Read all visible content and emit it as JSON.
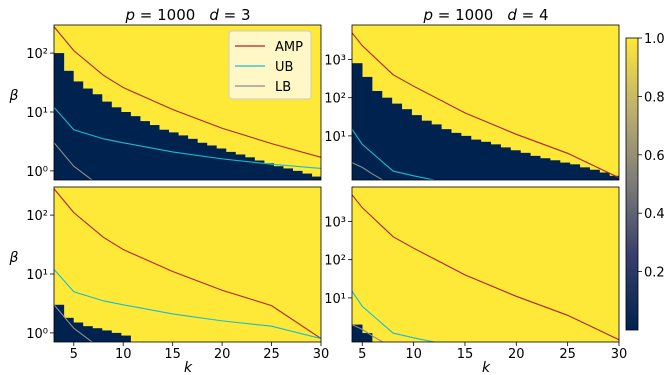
{
  "figure": {
    "colorbar": {
      "ticks": [
        "0.2",
        "0.4",
        "0.6",
        "0.8",
        "1.0"
      ],
      "low_color": "#00224e",
      "high_color": "#fee838"
    },
    "legend": {
      "position": "top-right",
      "panel": 0
    }
  },
  "chart_data": [
    {
      "type": "heatmap",
      "title": "p = 1000   d = 3",
      "title_p": "1000",
      "title_d": "3",
      "xlabel": "",
      "ylabel": "β",
      "x_ticks": [],
      "y_ticks": [
        {
          "v": 1,
          "label": "10⁰"
        },
        {
          "v": 10,
          "label": "10¹"
        },
        {
          "v": 100,
          "label": "10²"
        }
      ],
      "xlim": [
        3,
        30
      ],
      "ylim": [
        0.7,
        300
      ],
      "yscale": "log",
      "heatmap": {
        "k": [
          3,
          4,
          5,
          6,
          7,
          8,
          9,
          10,
          11,
          12,
          13,
          14,
          15,
          16,
          17,
          18,
          19,
          20,
          21,
          22,
          23,
          24,
          25,
          26,
          27,
          28,
          29,
          30
        ],
        "success_threshold": [
          100,
          50,
          33,
          25,
          20,
          15,
          12,
          10,
          8.5,
          7,
          6,
          5,
          4.5,
          4,
          3.5,
          3,
          2.7,
          2.4,
          2.1,
          1.9,
          1.7,
          1.5,
          1.35,
          1.2,
          1.1,
          1.0,
          0.9,
          0.8
        ]
      },
      "series": [
        {
          "name": "AMP",
          "color": "#b22222",
          "x": [
            3,
            5,
            8,
            10,
            15,
            20,
            25,
            30
          ],
          "y": [
            280,
            110,
            42,
            26,
            11,
            5.3,
            2.9,
            1.7
          ]
        },
        {
          "name": "UB",
          "color": "#17becf",
          "x": [
            3,
            5,
            8,
            10,
            15,
            20,
            25,
            30
          ],
          "y": [
            12,
            5,
            3.5,
            3,
            2.1,
            1.6,
            1.3,
            1.1
          ]
        },
        {
          "name": "LB",
          "color": "#8c8c8c",
          "x": [
            3,
            5,
            8,
            10,
            15,
            20,
            25,
            30
          ],
          "y": [
            3,
            1.2,
            0.5,
            0.35,
            0.25,
            0.2,
            0.15,
            0.1
          ]
        }
      ]
    },
    {
      "type": "heatmap",
      "title": "p = 1000   d = 4",
      "title_p": "1000",
      "title_d": "4",
      "xlabel": "",
      "ylabel": "",
      "x_ticks": [],
      "y_ticks": [
        {
          "v": 10,
          "label": "10¹"
        },
        {
          "v": 100,
          "label": "10²"
        },
        {
          "v": 1000,
          "label": "10³"
        }
      ],
      "xlim": [
        4,
        30
      ],
      "ylim": [
        0.7,
        8000
      ],
      "yscale": "log",
      "heatmap": {
        "k": [
          4,
          5,
          6,
          7,
          8,
          9,
          10,
          11,
          12,
          13,
          14,
          15,
          16,
          17,
          18,
          19,
          20,
          21,
          22,
          23,
          24,
          25,
          26,
          27,
          28,
          29,
          30
        ],
        "success_threshold": [
          800,
          350,
          150,
          100,
          70,
          50,
          35,
          25,
          20,
          15,
          12,
          10,
          8,
          7,
          6,
          5,
          4.2,
          3.6,
          3,
          2.6,
          2.3,
          2,
          1.8,
          1.5,
          1.3,
          1.1,
          0.9
        ]
      },
      "series": [
        {
          "name": "AMP",
          "color": "#b22222",
          "x": [
            4,
            5,
            8,
            10,
            15,
            20,
            25,
            30
          ],
          "y": [
            5000,
            2300,
            400,
            200,
            40,
            11,
            3.5,
            0.8
          ]
        },
        {
          "name": "UB",
          "color": "#17becf",
          "x": [
            4,
            5,
            8,
            10,
            12,
            15,
            20,
            30
          ],
          "y": [
            15,
            6,
            1.2,
            0.9,
            0.7,
            0.5,
            0.3,
            0.1
          ]
        },
        {
          "name": "LB",
          "color": "#8c8c8c",
          "x": [
            4,
            5,
            6,
            7,
            8,
            10
          ],
          "y": [
            2,
            1.5,
            1,
            0.7,
            0.5,
            0.3
          ]
        }
      ]
    },
    {
      "type": "heatmap",
      "title": "",
      "xlabel": "k",
      "ylabel": "β",
      "x_ticks": [
        {
          "v": 5,
          "label": "5"
        },
        {
          "v": 10,
          "label": "10"
        },
        {
          "v": 15,
          "label": "15"
        },
        {
          "v": 20,
          "label": "20"
        },
        {
          "v": 25,
          "label": "25"
        },
        {
          "v": 30,
          "label": "30"
        }
      ],
      "y_ticks": [
        {
          "v": 1,
          "label": "10⁰"
        },
        {
          "v": 10,
          "label": "10¹"
        },
        {
          "v": 100,
          "label": "10²"
        }
      ],
      "xlim": [
        3,
        30
      ],
      "ylim": [
        0.7,
        300
      ],
      "yscale": "log",
      "heatmap": {
        "k": [
          3,
          4,
          5,
          6,
          7,
          8,
          9,
          10,
          11,
          12,
          13,
          14,
          15,
          16,
          17,
          18,
          19,
          20,
          21,
          22,
          23,
          24,
          25,
          26,
          27,
          28,
          29,
          30
        ],
        "success_threshold": [
          3,
          1.8,
          1.5,
          1.3,
          1.2,
          1.1,
          1.0,
          0.9,
          0.7,
          0.7,
          0.7,
          0.7,
          0.7,
          0.7,
          0.7,
          0.7,
          0.7,
          0.7,
          0.7,
          0.7,
          0.7,
          0.7,
          0.7,
          0.7,
          0.7,
          0.7,
          0.7,
          0.7
        ]
      },
      "series": [
        {
          "name": "AMP",
          "color": "#b22222",
          "x": [
            3,
            5,
            8,
            10,
            15,
            20,
            25,
            30
          ],
          "y": [
            280,
            110,
            42,
            26,
            11,
            5.3,
            2.9,
            0.8
          ]
        },
        {
          "name": "UB",
          "color": "#17becf",
          "x": [
            3,
            5,
            8,
            10,
            15,
            20,
            25,
            30
          ],
          "y": [
            12,
            5,
            3.5,
            3,
            2.1,
            1.6,
            1.3,
            0.8
          ]
        },
        {
          "name": "LB",
          "color": "#8c8c8c",
          "x": [
            3,
            5,
            8,
            10,
            15,
            20,
            25,
            30
          ],
          "y": [
            3,
            1.2,
            0.5,
            0.35,
            0.25,
            0.2,
            0.15,
            0.1
          ]
        }
      ]
    },
    {
      "type": "heatmap",
      "title": "",
      "xlabel": "k",
      "ylabel": "",
      "x_ticks": [
        {
          "v": 5,
          "label": "5"
        },
        {
          "v": 10,
          "label": "10"
        },
        {
          "v": 15,
          "label": "15"
        },
        {
          "v": 20,
          "label": "20"
        },
        {
          "v": 25,
          "label": "25"
        },
        {
          "v": 30,
          "label": "30"
        }
      ],
      "y_ticks": [
        {
          "v": 10,
          "label": "10¹"
        },
        {
          "v": 100,
          "label": "10²"
        },
        {
          "v": 1000,
          "label": "10³"
        }
      ],
      "xlim": [
        4,
        30
      ],
      "ylim": [
        0.7,
        8000
      ],
      "yscale": "log",
      "heatmap": {
        "k": [
          4,
          5,
          6,
          7,
          8,
          9,
          10,
          11,
          12,
          13,
          14,
          15,
          16,
          17,
          18,
          19,
          20,
          21,
          22,
          23,
          24,
          25,
          26,
          27,
          28,
          29,
          30
        ],
        "success_threshold": [
          2,
          1.2,
          0.7,
          0.7,
          0.7,
          0.7,
          0.7,
          0.7,
          0.7,
          0.7,
          0.7,
          0.7,
          0.7,
          0.7,
          0.7,
          0.7,
          0.7,
          0.7,
          0.7,
          0.7,
          0.7,
          0.7,
          0.7,
          0.7,
          0.7,
          0.7,
          0.7
        ]
      },
      "series": [
        {
          "name": "AMP",
          "color": "#b22222",
          "x": [
            4,
            5,
            8,
            10,
            15,
            20,
            25,
            30
          ],
          "y": [
            5000,
            2300,
            400,
            200,
            40,
            11,
            3.5,
            0.8
          ]
        },
        {
          "name": "UB",
          "color": "#17becf",
          "x": [
            4,
            5,
            8,
            10,
            12,
            15,
            20,
            30
          ],
          "y": [
            15,
            6,
            1.2,
            0.9,
            0.7,
            0.5,
            0.3,
            0.1
          ]
        },
        {
          "name": "LB",
          "color": "#8c8c8c",
          "x": [
            4,
            5,
            6,
            7,
            8,
            10
          ],
          "y": [
            2,
            1.5,
            1,
            0.7,
            0.5,
            0.3
          ]
        }
      ]
    }
  ]
}
